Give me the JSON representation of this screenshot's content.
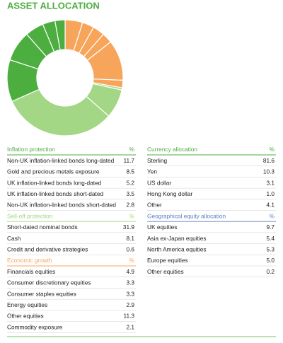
{
  "title": "ASSET ALLOCATION",
  "left": [
    {
      "heading": "Inflation protection",
      "unit": "%",
      "color": "#4cae3f",
      "rows": [
        {
          "label": "Non-UK inflation-linked bonds long-dated",
          "value": 11.7
        },
        {
          "label": "Gold and precious metals exposure",
          "value": 8.5
        },
        {
          "label": "UK inflation-linked bonds long-dated",
          "value": 5.2
        },
        {
          "label": "UK inflation-linked bonds short-dated",
          "value": 3.5
        },
        {
          "label": "Non-UK inflation-linked bonds short-dated",
          "value": 2.8
        }
      ]
    },
    {
      "heading": "Sell-off protection",
      "unit": "%",
      "color": "#a3d685",
      "rows": [
        {
          "label": "Short-dated nominal bonds",
          "value": 31.9
        },
        {
          "label": "Cash",
          "value": 8.1
        },
        {
          "label": "Credit and derivative strategies",
          "value": 0.6
        }
      ]
    },
    {
      "heading": "Economic growth",
      "unit": "%",
      "color": "#f8a55c",
      "rows": [
        {
          "label": "Financials equities",
          "value": 4.9
        },
        {
          "label": "Consumer discretionary equities",
          "value": 3.3
        },
        {
          "label": "Consumer staples equities",
          "value": 3.3
        },
        {
          "label": "Energy equities",
          "value": 2.9
        },
        {
          "label": "Other equities",
          "value": 11.3
        },
        {
          "label": "Commodity exposure",
          "value": 2.1
        }
      ]
    }
  ],
  "right": [
    {
      "heading": "Currency allocation",
      "unit": "%",
      "color": "#4cae3f",
      "rows": [
        {
          "label": "Sterling",
          "value": "81.6"
        },
        {
          "label": "Yen",
          "value": "10.3"
        },
        {
          "label": "US dollar",
          "value": "3.1"
        },
        {
          "label": "Hong Kong dollar",
          "value": "1.0"
        },
        {
          "label": "Other",
          "value": "4.1"
        }
      ]
    },
    {
      "heading": "Geographical equity allocation",
      "unit": "%",
      "color": "#5a80c6",
      "rows": [
        {
          "label": "UK equities",
          "value": "9.7"
        },
        {
          "label": "Asia ex-Japan equities",
          "value": "5.4"
        },
        {
          "label": "North America equities",
          "value": "5.3"
        },
        {
          "label": "Europe equities",
          "value": "5.0"
        },
        {
          "label": "Other equities",
          "value": "0.2"
        }
      ]
    }
  ]
}
